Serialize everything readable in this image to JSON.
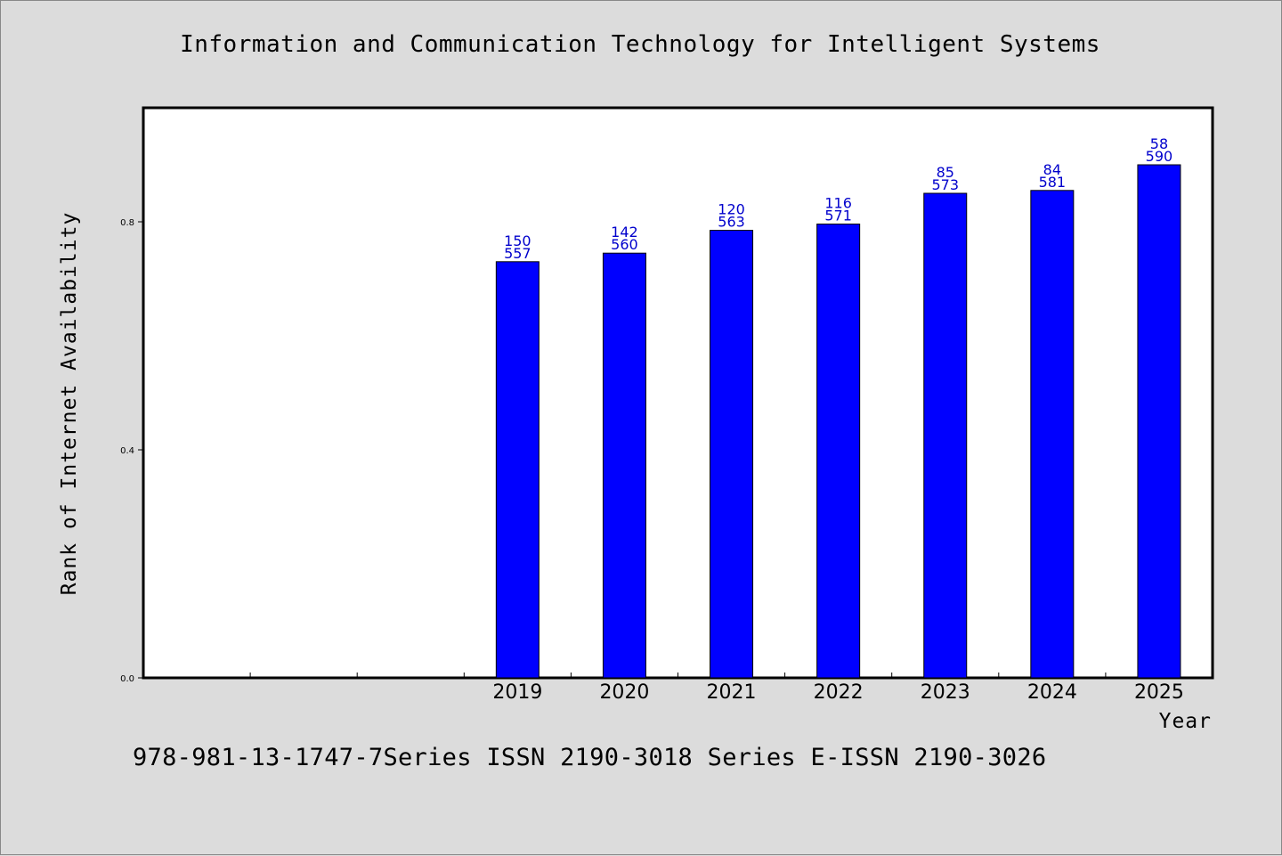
{
  "chart_data": {
    "type": "bar",
    "title": "Information and Communication Technology for Intelligent Systems",
    "xlabel": "Year",
    "ylabel": "Rank of Internet Availability",
    "categories": [
      "",
      "",
      "",
      "2019",
      "2020",
      "2021",
      "2022",
      "2023",
      "2024",
      "2025"
    ],
    "values": [
      null,
      null,
      null,
      0.73,
      0.745,
      0.785,
      0.796,
      0.85,
      0.855,
      0.9
    ],
    "bar_labels_top": [
      "",
      "",
      "",
      "150",
      "142",
      "120",
      "116",
      "85",
      "84",
      "58"
    ],
    "bar_labels_bottom": [
      "",
      "",
      "",
      "557",
      "560",
      "563",
      "571",
      "573",
      "581",
      "590"
    ],
    "ylim": [
      0,
      1.0
    ],
    "yticks": [
      {
        "value": 0.0,
        "label": "0.0"
      },
      {
        "value": 0.4,
        "label": "0.4"
      },
      {
        "value": 0.8,
        "label": "0.8"
      }
    ],
    "grid": false,
    "colors": {
      "bar": "#0000ff",
      "bar_label": "#0000cc",
      "plot_bg": "#ffffff",
      "page_bg": "#dcdcdc"
    }
  },
  "footer": "978-981-13-1747-7Series ISSN 2190-3018 Series E-ISSN 2190-3026"
}
